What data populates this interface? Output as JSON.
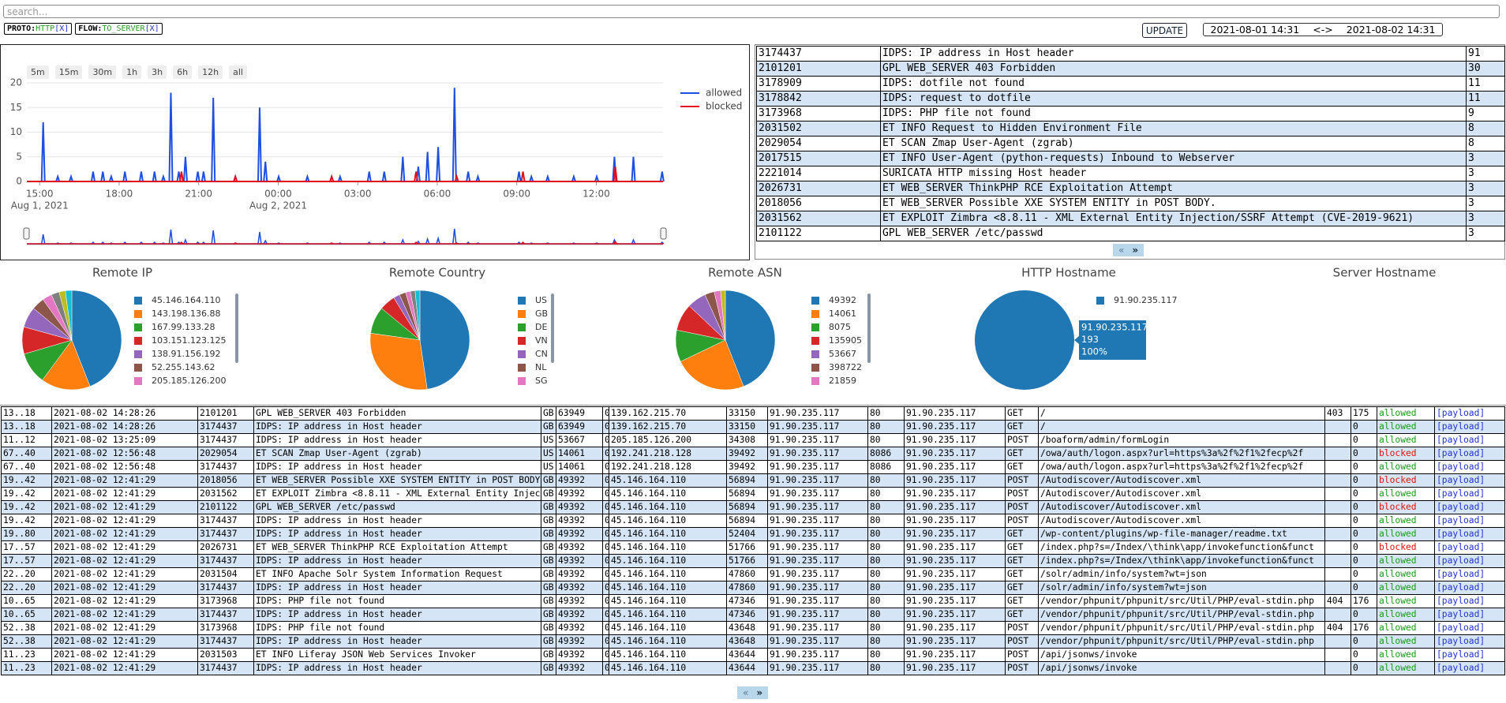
{
  "search": {
    "placeholder": "search..."
  },
  "filters": [
    {
      "key": "PROTO:",
      "value": "HTTP",
      "remove": "[X]"
    },
    {
      "key": "FLOW:",
      "value": "TO_SERVER",
      "remove": "[X]"
    }
  ],
  "update_button": "UPDATE",
  "date_range": {
    "from": "2021-08-01 14:31",
    "separator": "<->",
    "to": "2021-08-02 14:31"
  },
  "range_buttons": [
    "5m",
    "15m",
    "30m",
    "1h",
    "3h",
    "6h",
    "12h",
    "all"
  ],
  "alerts": {
    "rows": [
      [
        "3174437",
        "IDPS: IP address in Host header",
        "91"
      ],
      [
        "2101201",
        "GPL WEB_SERVER 403 Forbidden",
        "30"
      ],
      [
        "3178909",
        "IDPS: dotfile not found",
        "11"
      ],
      [
        "3178842",
        "IDPS: request to dotfile",
        "11"
      ],
      [
        "3173968",
        "IDPS: PHP file not found",
        "9"
      ],
      [
        "2031502",
        "ET INFO Request to Hidden Environment File",
        "8"
      ],
      [
        "2029054",
        "ET SCAN Zmap User-Agent (zgrab)",
        "8"
      ],
      [
        "2017515",
        "ET INFO User-Agent (python-requests) Inbound to Webserver",
        "3"
      ],
      [
        "2221014",
        "SURICATA HTTP missing Host header",
        "3"
      ],
      [
        "2026731",
        "ET WEB_SERVER ThinkPHP RCE Exploitation Attempt",
        "3"
      ],
      [
        "2018056",
        "ET WEB_SERVER Possible XXE SYSTEM ENTITY in POST BODY.",
        "3"
      ],
      [
        "2031562",
        "ET EXPLOIT Zimbra <8.8.11 - XML External Entity Injection/SSRF Attempt (CVE-2019-9621)",
        "3"
      ],
      [
        "2101122",
        "GPL WEB_SERVER /etc/passwd",
        "3"
      ]
    ],
    "pager": [
      "«",
      "»"
    ]
  },
  "chart_data": [
    {
      "type": "line",
      "grid": true,
      "legend": "right",
      "xlim": [
        "2021-08-01 14:31",
        "2021-08-02 14:31"
      ],
      "xticks": [
        {
          "value": "2021-08-01 15:00",
          "label": "15:00"
        },
        {
          "value": "2021-08-01 18:00",
          "label": "18:00"
        },
        {
          "value": "2021-08-01 21:00",
          "label": "21:00"
        },
        {
          "value": "2021-08-02 00:00",
          "label": "00:00"
        },
        {
          "value": "2021-08-02 03:00",
          "label": "03:00"
        },
        {
          "value": "2021-08-02 06:00",
          "label": "06:00"
        },
        {
          "value": "2021-08-02 09:00",
          "label": "09:00"
        },
        {
          "value": "2021-08-02 12:00",
          "label": "12:00"
        }
      ],
      "date_labels": [
        {
          "value": "2021-08-01 15:00",
          "label": "Aug 1, 2021"
        },
        {
          "value": "2021-08-02 00:00",
          "label": "Aug 2, 2021"
        }
      ],
      "ylim": [
        0,
        20
      ],
      "yticks": [
        0,
        5,
        10,
        15,
        20
      ],
      "series": [
        {
          "name": "allowed",
          "color": "#1f4fe0",
          "x": [
            "2021-08-01 15:08",
            "2021-08-01 15:41",
            "2021-08-01 16:11",
            "2021-08-01 17:01",
            "2021-08-01 17:23",
            "2021-08-01 17:42",
            "2021-08-01 18:13",
            "2021-08-01 18:50",
            "2021-08-01 19:20",
            "2021-08-01 19:40",
            "2021-08-01 19:57",
            "2021-08-01 20:15",
            "2021-08-01 20:30",
            "2021-08-01 20:58",
            "2021-08-01 21:11",
            "2021-08-01 21:33",
            "2021-08-01 22:23",
            "2021-08-01 23:18",
            "2021-08-01 23:31",
            "2021-08-02 00:01",
            "2021-08-02 01:06",
            "2021-08-02 02:01",
            "2021-08-02 02:20",
            "2021-08-02 03:26",
            "2021-08-02 04:00",
            "2021-08-02 04:42",
            "2021-08-02 05:17",
            "2021-08-02 05:38",
            "2021-08-02 06:02",
            "2021-08-02 06:39",
            "2021-08-02 07:10",
            "2021-08-02 07:32",
            "2021-08-02 09:05",
            "2021-08-02 09:33",
            "2021-08-02 10:10",
            "2021-08-02 11:09",
            "2021-08-02 12:01",
            "2021-08-02 12:41",
            "2021-08-02 13:24",
            "2021-08-02 14:29"
          ],
          "values": [
            12,
            1,
            1,
            2,
            2,
            1,
            2,
            2,
            2,
            1,
            18,
            2,
            5,
            2,
            2,
            17,
            1,
            15,
            4,
            1,
            1,
            1,
            1,
            2,
            2,
            5,
            3,
            6,
            7,
            19,
            2,
            1,
            2,
            1,
            1,
            1,
            1,
            5,
            5,
            2
          ]
        },
        {
          "name": "blocked",
          "color": "#e0101e",
          "x": [
            "2021-08-01 20:21",
            "2021-08-01 22:23",
            "2021-08-02 02:01",
            "2021-08-02 05:12",
            "2021-08-02 06:44",
            "2021-08-02 09:14",
            "2021-08-02 12:43"
          ],
          "values": [
            2,
            1,
            1,
            2,
            1,
            2,
            3
          ]
        }
      ]
    },
    {
      "type": "pie",
      "title": "Remote IP",
      "categories": [
        "45.146.164.110",
        "143.198.136.88",
        "167.99.133.28",
        "103.151.123.125",
        "138.91.156.192",
        "52.255.143.62",
        "205.185.126.200",
        null,
        null,
        null
      ],
      "values": [
        85,
        31,
        20,
        17,
        13,
        8,
        6,
        5,
        4,
        4
      ],
      "colors": [
        "#1f77b4",
        "#ff7f0e",
        "#2ca02c",
        "#d62728",
        "#9467bd",
        "#8c564b",
        "#e377c2",
        "#7f7f7f",
        "#bcbd22",
        "#17becf"
      ]
    },
    {
      "type": "pie",
      "title": "Remote Country",
      "categories": [
        "US",
        "GB",
        "DE",
        "VN",
        "CN",
        "NL",
        "SG",
        null,
        null
      ],
      "values": [
        92,
        57,
        17,
        10,
        4,
        4,
        3,
        3,
        3
      ],
      "colors": [
        "#1f77b4",
        "#ff7f0e",
        "#2ca02c",
        "#d62728",
        "#9467bd",
        "#8c564b",
        "#e377c2",
        "#7f7f7f",
        "#17becf"
      ]
    },
    {
      "type": "pie",
      "title": "Remote ASN",
      "categories": [
        "49392",
        "14061",
        "8075",
        "135905",
        "53667",
        "398722",
        "21859",
        null
      ],
      "values": [
        85,
        46,
        20,
        17,
        12,
        6,
        4,
        3
      ],
      "colors": [
        "#1f77b4",
        "#ff7f0e",
        "#2ca02c",
        "#d62728",
        "#9467bd",
        "#8c564b",
        "#e377c2",
        "#bcbd22"
      ]
    },
    {
      "type": "pie",
      "title": "HTTP Hostname",
      "categories": [
        "91.90.235.117"
      ],
      "values": [
        193
      ],
      "colors": [
        "#1f77b4"
      ],
      "tooltip_share": "100%"
    },
    {
      "type": "pie",
      "title": "Server Hostname",
      "categories": [],
      "values": [],
      "colors": []
    }
  ],
  "events": {
    "rows": [
      [
        "13..18",
        "2021-08-02 14:28:26",
        "2101201",
        "GPL WEB_SERVER 403 Forbidden",
        "GB",
        "63949",
        "0",
        "139.162.215.70",
        "33150",
        "91.90.235.117",
        "80",
        "91.90.235.117",
        "GET",
        "/",
        "403",
        "175",
        "allowed",
        "[payload]"
      ],
      [
        "13..18",
        "2021-08-02 14:28:26",
        "3174437",
        "IDPS: IP address in Host header",
        "GB",
        "63949",
        "0",
        "139.162.215.70",
        "33150",
        "91.90.235.117",
        "80",
        "91.90.235.117",
        "GET",
        "/",
        null,
        "0",
        "allowed",
        "[payload]"
      ],
      [
        "11..12",
        "2021-08-02 13:25:09",
        "3174437",
        "IDPS: IP address in Host header",
        "US",
        "53667",
        "0",
        "205.185.126.200",
        "34308",
        "91.90.235.117",
        "80",
        "91.90.235.117",
        "POST",
        "/boaform/admin/formLogin",
        null,
        "0",
        "allowed",
        "[payload]"
      ],
      [
        "67..40",
        "2021-08-02 12:56:48",
        "2029054",
        "ET SCAN Zmap User-Agent (zgrab)",
        "US",
        "14061",
        "0",
        "192.241.218.128",
        "39492",
        "91.90.235.117",
        "8086",
        "91.90.235.117",
        "GET",
        "/owa/auth/logon.aspx?url=https%3a%2f%2f1%2fecp%2f",
        null,
        "0",
        "blocked",
        "[payload]"
      ],
      [
        "67..40",
        "2021-08-02 12:56:48",
        "3174437",
        "IDPS: IP address in Host header",
        "US",
        "14061",
        "0",
        "192.241.218.128",
        "39492",
        "91.90.235.117",
        "8086",
        "91.90.235.117",
        "GET",
        "/owa/auth/logon.aspx?url=https%3a%2f%2f1%2fecp%2f",
        null,
        "0",
        "allowed",
        "[payload]"
      ],
      [
        "19..42",
        "2021-08-02 12:41:29",
        "2018056",
        "ET WEB_SERVER Possible XXE SYSTEM ENTITY in POST BODY.",
        "GB",
        "49392",
        "0",
        "45.146.164.110",
        "56894",
        "91.90.235.117",
        "80",
        "91.90.235.117",
        "POST",
        "/Autodiscover/Autodiscover.xml",
        null,
        "0",
        "blocked",
        "[payload]"
      ],
      [
        "19..42",
        "2021-08-02 12:41:29",
        "2031562",
        "ET EXPLOIT Zimbra <8.8.11 - XML External Entity Injection/SSRF Attempt (CVE-2019-9621)",
        "GB",
        "49392",
        "0",
        "45.146.164.110",
        "56894",
        "91.90.235.117",
        "80",
        "91.90.235.117",
        "POST",
        "/Autodiscover/Autodiscover.xml",
        null,
        "0",
        "allowed",
        "[payload]"
      ],
      [
        "19..42",
        "2021-08-02 12:41:29",
        "2101122",
        "GPL WEB_SERVER /etc/passwd",
        "GB",
        "49392",
        "0",
        "45.146.164.110",
        "56894",
        "91.90.235.117",
        "80",
        "91.90.235.117",
        "POST",
        "/Autodiscover/Autodiscover.xml",
        null,
        "0",
        "blocked",
        "[payload]"
      ],
      [
        "19..42",
        "2021-08-02 12:41:29",
        "3174437",
        "IDPS: IP address in Host header",
        "GB",
        "49392",
        "0",
        "45.146.164.110",
        "56894",
        "91.90.235.117",
        "80",
        "91.90.235.117",
        "POST",
        "/Autodiscover/Autodiscover.xml",
        null,
        "0",
        "allowed",
        "[payload]"
      ],
      [
        "19..80",
        "2021-08-02 12:41:29",
        "3174437",
        "IDPS: IP address in Host header",
        "GB",
        "49392",
        "0",
        "45.146.164.110",
        "52404",
        "91.90.235.117",
        "80",
        "91.90.235.117",
        "GET",
        "/wp-content/plugins/wp-file-manager/readme.txt",
        null,
        "0",
        "allowed",
        "[payload]"
      ],
      [
        "17..57",
        "2021-08-02 12:41:29",
        "2026731",
        "ET WEB_SERVER ThinkPHP RCE Exploitation Attempt",
        "GB",
        "49392",
        "0",
        "45.146.164.110",
        "51766",
        "91.90.235.117",
        "80",
        "91.90.235.117",
        "GET",
        "/index.php?s=/Index/\\think\\app/invokefunction&funct",
        null,
        "0",
        "blocked",
        "[payload]"
      ],
      [
        "17..57",
        "2021-08-02 12:41:29",
        "3174437",
        "IDPS: IP address in Host header",
        "GB",
        "49392",
        "0",
        "45.146.164.110",
        "51766",
        "91.90.235.117",
        "80",
        "91.90.235.117",
        "GET",
        "/index.php?s=/Index/\\think\\app/invokefunction&funct",
        null,
        "0",
        "allowed",
        "[payload]"
      ],
      [
        "22..20",
        "2021-08-02 12:41:29",
        "2031504",
        "ET INFO Apache Solr System Information Request",
        "GB",
        "49392",
        "0",
        "45.146.164.110",
        "47860",
        "91.90.235.117",
        "80",
        "91.90.235.117",
        "GET",
        "/solr/admin/info/system?wt=json",
        null,
        "0",
        "allowed",
        "[payload]"
      ],
      [
        "22..20",
        "2021-08-02 12:41:29",
        "3174437",
        "IDPS: IP address in Host header",
        "GB",
        "49392",
        "0",
        "45.146.164.110",
        "47860",
        "91.90.235.117",
        "80",
        "91.90.235.117",
        "GET",
        "/solr/admin/info/system?wt=json",
        null,
        "0",
        "allowed",
        "[payload]"
      ],
      [
        "10..65",
        "2021-08-02 12:41:29",
        "3173968",
        "IDPS: PHP file not found",
        "GB",
        "49392",
        "0",
        "45.146.164.110",
        "47346",
        "91.90.235.117",
        "80",
        "91.90.235.117",
        "GET",
        "/vendor/phpunit/phpunit/src/Util/PHP/eval-stdin.php",
        "404",
        "176",
        "allowed",
        "[payload]"
      ],
      [
        "10..65",
        "2021-08-02 12:41:29",
        "3174437",
        "IDPS: IP address in Host header",
        "GB",
        "49392",
        "0",
        "45.146.164.110",
        "47346",
        "91.90.235.117",
        "80",
        "91.90.235.117",
        "GET",
        "/vendor/phpunit/phpunit/src/Util/PHP/eval-stdin.php",
        null,
        "0",
        "allowed",
        "[payload]"
      ],
      [
        "52..38",
        "2021-08-02 12:41:29",
        "3173968",
        "IDPS: PHP file not found",
        "GB",
        "49392",
        "0",
        "45.146.164.110",
        "43648",
        "91.90.235.117",
        "80",
        "91.90.235.117",
        "POST",
        "/vendor/phpunit/phpunit/src/Util/PHP/eval-stdin.php",
        "404",
        "176",
        "allowed",
        "[payload]"
      ],
      [
        "52..38",
        "2021-08-02 12:41:29",
        "3174437",
        "IDPS: IP address in Host header",
        "GB",
        "49392",
        "0",
        "45.146.164.110",
        "43648",
        "91.90.235.117",
        "80",
        "91.90.235.117",
        "POST",
        "/vendor/phpunit/phpunit/src/Util/PHP/eval-stdin.php",
        null,
        "0",
        "allowed",
        "[payload]"
      ],
      [
        "11..23",
        "2021-08-02 12:41:29",
        "2031503",
        "ET INFO Liferay JSON Web Services Invoker",
        "GB",
        "49392",
        "0",
        "45.146.164.110",
        "43644",
        "91.90.235.117",
        "80",
        "91.90.235.117",
        "POST",
        "/api/jsonws/invoke",
        null,
        "0",
        "allowed",
        "[payload]"
      ],
      [
        "11..23",
        "2021-08-02 12:41:29",
        "3174437",
        "IDPS: IP address in Host header",
        "GB",
        "49392",
        "0",
        "45.146.164.110",
        "43644",
        "91.90.235.117",
        "80",
        "91.90.235.117",
        "POST",
        "/api/jsonws/invoke",
        null,
        "0",
        "allowed",
        "[payload]"
      ]
    ],
    "pager": [
      "«",
      "»"
    ]
  }
}
